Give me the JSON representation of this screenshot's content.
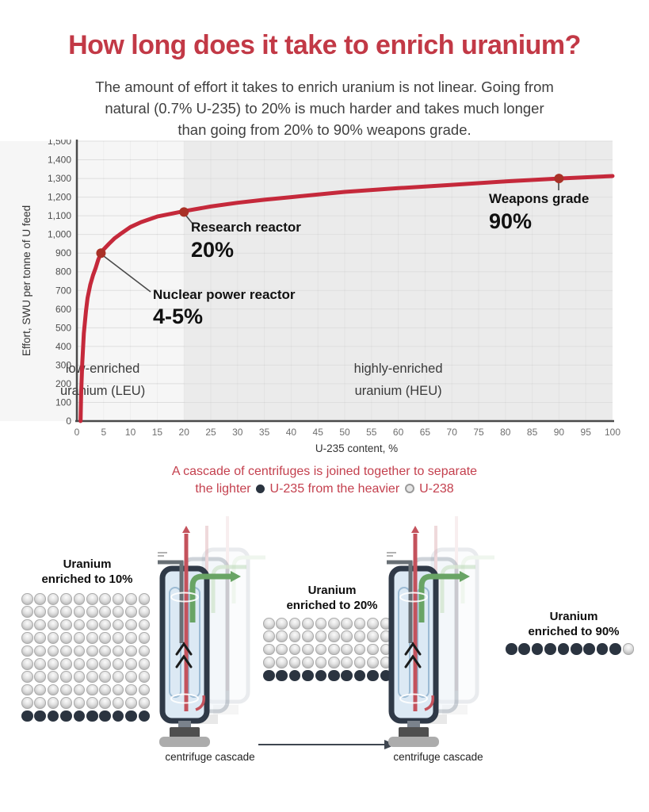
{
  "page": {
    "title": "How long does it take to enrich uranium?",
    "subtitle": [
      "The amount of effort it takes to enrich uranium is not linear. Going from",
      "natural (0.7% U-235) to 20% is much harder and takes much longer",
      "than going from 20% to 90% weapons grade."
    ]
  },
  "colors": {
    "accent_red": "#c23946",
    "curve_red": "#c5293b",
    "marker_red": "#a93127",
    "dark_dot": "#2b3440",
    "gray_dot": "#cccccc"
  },
  "chart_data": {
    "type": "line",
    "title": "",
    "xlabel": "U-235 content, %",
    "ylabel": "Effort, SWU per tonne of U feed",
    "xlim": [
      0,
      100
    ],
    "ylim": [
      0,
      1500
    ],
    "grid": true,
    "x_ticks": [
      0,
      5,
      10,
      15,
      20,
      25,
      30,
      35,
      40,
      45,
      50,
      55,
      60,
      65,
      70,
      75,
      80,
      85,
      90,
      95,
      100
    ],
    "y_ticks": [
      0,
      100,
      200,
      300,
      400,
      500,
      600,
      700,
      800,
      900,
      1000,
      1100,
      1200,
      1300,
      1400,
      1500
    ],
    "regions": [
      {
        "name": "leu",
        "label_lines": [
          "low-enriched",
          "uranium (LEU)"
        ],
        "from": 0,
        "to": 20,
        "bg": "#f6f6f6"
      },
      {
        "name": "heu",
        "label_lines": [
          "highly-enriched",
          "uranium (HEU)"
        ],
        "from": 20,
        "to": 100,
        "bg": "#ebebeb"
      }
    ],
    "annotations": [
      {
        "name": "nuclear-power-reactor",
        "label": "Nuclear power reactor",
        "value": "4-5%",
        "x": 4.5,
        "y": 900
      },
      {
        "name": "research-reactor",
        "label": "Research reactor",
        "value": "20%",
        "x": 20,
        "y": 1120
      },
      {
        "name": "weapons-grade",
        "label": "Weapons grade",
        "value": "90%",
        "x": 90,
        "y": 1300
      }
    ],
    "curve": {
      "x": [
        0.7,
        0.8,
        1,
        1.3,
        1.7,
        2,
        2.5,
        3,
        3.5,
        4,
        4.5,
        5,
        6,
        7,
        8,
        10,
        12,
        15,
        20,
        25,
        30,
        35,
        40,
        50,
        60,
        70,
        80,
        90,
        100
      ],
      "y": [
        0,
        150,
        310,
        470,
        590,
        660,
        730,
        780,
        820,
        865,
        900,
        920,
        950,
        978,
        1000,
        1040,
        1066,
        1096,
        1125,
        1150,
        1170,
        1186,
        1200,
        1228,
        1248,
        1266,
        1284,
        1300,
        1313
      ]
    }
  },
  "cascade_caption": {
    "line1": "A cascade of centrifuges is joined together to separate",
    "line2_a": "the lighter",
    "line2_b": "U-235 from the heavier",
    "line2_c": "U-238"
  },
  "bottom": {
    "cascade_label": "centrifuge cascade",
    "groups": [
      {
        "label_lines": [
          "Uranium",
          "enriched to 10%"
        ],
        "cols": 10,
        "segments": [
          {
            "color": "gray",
            "count": 90
          },
          {
            "color": "dark",
            "count": 10
          }
        ]
      },
      {
        "label_lines": [
          "Uranium",
          "enriched to 20%"
        ],
        "cols": 10,
        "segments": [
          {
            "color": "gray",
            "count": 40
          },
          {
            "color": "dark",
            "count": 10
          }
        ]
      },
      {
        "label_lines": [
          "Uranium",
          "enriched to 90%"
        ],
        "cols": 10,
        "segments": [
          {
            "color": "dark",
            "count": 9
          },
          {
            "color": "gray",
            "count": 1
          }
        ]
      }
    ]
  }
}
